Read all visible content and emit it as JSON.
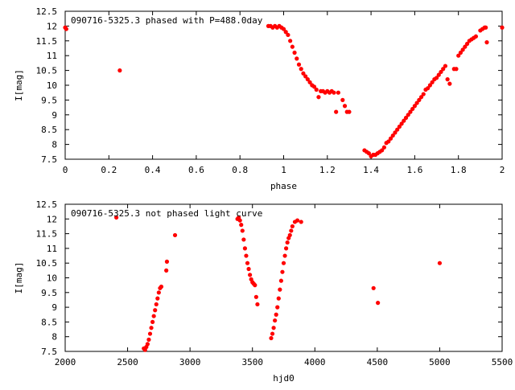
{
  "colors": {
    "series": "#ff0000",
    "axis": "#000000",
    "background": "#ffffff"
  },
  "chart_data": [
    {
      "type": "scatter",
      "title": "090716-5325.3 phased with P=488.0day",
      "xlabel": "phase",
      "ylabel": "I[mag]",
      "xlim": [
        0,
        2
      ],
      "ylim": [
        12.5,
        7.5
      ],
      "y_inverted": true,
      "grid": false,
      "marker": "filled-circle",
      "xticks": [
        {
          "value": 0,
          "label": "0"
        },
        {
          "value": 0.2,
          "label": "0.2"
        },
        {
          "value": 0.4,
          "label": "0.4"
        },
        {
          "value": 0.6,
          "label": "0.6"
        },
        {
          "value": 0.8,
          "label": "0.8"
        },
        {
          "value": 1,
          "label": "1"
        },
        {
          "value": 1.2,
          "label": "1.2"
        },
        {
          "value": 1.4,
          "label": "1.4"
        },
        {
          "value": 1.6,
          "label": "1.6"
        },
        {
          "value": 1.8,
          "label": "1.8"
        },
        {
          "value": 2,
          "label": "2"
        }
      ],
      "yticks": [
        {
          "value": 7.5,
          "label": "7.5"
        },
        {
          "value": 8,
          "label": "8"
        },
        {
          "value": 8.5,
          "label": "8.5"
        },
        {
          "value": 9,
          "label": "9"
        },
        {
          "value": 9.5,
          "label": "9.5"
        },
        {
          "value": 10,
          "label": "10"
        },
        {
          "value": 10.5,
          "label": "10.5"
        },
        {
          "value": 11,
          "label": "11"
        },
        {
          "value": 11.5,
          "label": "11.5"
        },
        {
          "value": 12,
          "label": "12"
        },
        {
          "value": 12.5,
          "label": "12.5"
        }
      ],
      "x": [
        0.0,
        0.005,
        0.25,
        0.93,
        0.94,
        0.95,
        0.96,
        0.97,
        0.98,
        0.99,
        1.0,
        1.01,
        1.02,
        1.03,
        1.04,
        1.05,
        1.06,
        1.07,
        1.08,
        1.09,
        1.1,
        1.11,
        1.12,
        1.13,
        1.14,
        1.15,
        1.16,
        1.17,
        1.18,
        1.19,
        1.2,
        1.21,
        1.22,
        1.23,
        1.24,
        1.25,
        1.27,
        1.28,
        1.29,
        1.3,
        1.37,
        1.38,
        1.39,
        1.4,
        1.41,
        1.42,
        1.43,
        1.44,
        1.45,
        1.46,
        1.47,
        1.48,
        1.49,
        1.5,
        1.51,
        1.52,
        1.53,
        1.54,
        1.55,
        1.56,
        1.57,
        1.58,
        1.59,
        1.6,
        1.61,
        1.62,
        1.63,
        1.64,
        1.65,
        1.66,
        1.67,
        1.68,
        1.69,
        1.7,
        1.71,
        1.72,
        1.73,
        1.74,
        1.75,
        1.76,
        1.78,
        1.79,
        1.8,
        1.81,
        1.82,
        1.83,
        1.84,
        1.85,
        1.86,
        1.87,
        1.88,
        1.9,
        1.91,
        1.92,
        1.925,
        1.93,
        2.0
      ],
      "y": [
        11.95,
        11.9,
        10.5,
        12.0,
        12.0,
        11.95,
        12.0,
        11.95,
        12.0,
        11.95,
        11.9,
        11.8,
        11.7,
        11.5,
        11.3,
        11.1,
        10.9,
        10.7,
        10.55,
        10.4,
        10.3,
        10.2,
        10.1,
        10.0,
        9.95,
        9.85,
        9.6,
        9.8,
        9.8,
        9.75,
        9.8,
        9.75,
        9.8,
        9.75,
        9.1,
        9.75,
        9.5,
        9.3,
        9.1,
        9.1,
        7.8,
        7.75,
        7.7,
        7.6,
        7.65,
        7.65,
        7.7,
        7.75,
        7.8,
        7.9,
        8.05,
        8.1,
        8.2,
        8.3,
        8.4,
        8.5,
        8.6,
        8.7,
        8.8,
        8.9,
        9.0,
        9.1,
        9.2,
        9.3,
        9.4,
        9.5,
        9.6,
        9.7,
        9.85,
        9.9,
        10.0,
        10.1,
        10.2,
        10.25,
        10.35,
        10.45,
        10.55,
        10.65,
        10.2,
        10.05,
        10.55,
        10.55,
        11.0,
        11.1,
        11.2,
        11.3,
        11.4,
        11.5,
        11.55,
        11.6,
        11.65,
        11.85,
        11.9,
        11.95,
        11.95,
        11.45,
        11.95
      ]
    },
    {
      "type": "scatter",
      "title": "090716-5325.3 not phased light curve",
      "xlabel": "hjd0",
      "ylabel": "I[mag]",
      "xlim": [
        2000,
        5500
      ],
      "ylim": [
        12.5,
        7.5
      ],
      "y_inverted": true,
      "grid": false,
      "marker": "filled-circle",
      "xticks": [
        {
          "value": 2000,
          "label": "2000"
        },
        {
          "value": 2500,
          "label": "2500"
        },
        {
          "value": 3000,
          "label": "3000"
        },
        {
          "value": 3500,
          "label": "3500"
        },
        {
          "value": 4000,
          "label": "4000"
        },
        {
          "value": 4500,
          "label": "4500"
        },
        {
          "value": 5000,
          "label": "5000"
        },
        {
          "value": 5500,
          "label": "5500"
        }
      ],
      "yticks": [
        {
          "value": 7.5,
          "label": "7.5"
        },
        {
          "value": 8,
          "label": "8"
        },
        {
          "value": 8.5,
          "label": "8.5"
        },
        {
          "value": 9,
          "label": "9"
        },
        {
          "value": 9.5,
          "label": "9.5"
        },
        {
          "value": 10,
          "label": "10"
        },
        {
          "value": 10.5,
          "label": "10.5"
        },
        {
          "value": 11,
          "label": "11"
        },
        {
          "value": 11.5,
          "label": "11.5"
        },
        {
          "value": 12,
          "label": "12"
        },
        {
          "value": 12.5,
          "label": "12.5"
        }
      ],
      "x": [
        2410,
        2630,
        2640,
        2650,
        2660,
        2670,
        2680,
        2690,
        2700,
        2710,
        2720,
        2730,
        2740,
        2750,
        2760,
        2770,
        2810,
        2815,
        2880,
        3380,
        3390,
        3400,
        3410,
        3420,
        3430,
        3440,
        3450,
        3460,
        3470,
        3480,
        3490,
        3500,
        3510,
        3520,
        3530,
        3540,
        3650,
        3660,
        3670,
        3680,
        3690,
        3700,
        3710,
        3720,
        3730,
        3740,
        3750,
        3760,
        3770,
        3780,
        3790,
        3800,
        3810,
        3820,
        3840,
        3860,
        3890,
        4470,
        4505,
        5000
      ],
      "y": [
        12.05,
        7.6,
        7.55,
        7.65,
        7.75,
        7.9,
        8.1,
        8.3,
        8.5,
        8.7,
        8.9,
        9.1,
        9.3,
        9.5,
        9.65,
        9.7,
        10.25,
        10.55,
        11.45,
        12.0,
        12.05,
        11.95,
        11.8,
        11.6,
        11.3,
        11.0,
        10.75,
        10.5,
        10.3,
        10.1,
        9.95,
        9.85,
        9.8,
        9.75,
        9.35,
        9.1,
        7.95,
        8.1,
        8.3,
        8.55,
        8.75,
        9.0,
        9.3,
        9.6,
        9.9,
        10.2,
        10.5,
        10.75,
        11.0,
        11.2,
        11.35,
        11.45,
        11.6,
        11.75,
        11.9,
        11.95,
        11.9,
        9.65,
        9.15,
        10.5
      ]
    }
  ]
}
